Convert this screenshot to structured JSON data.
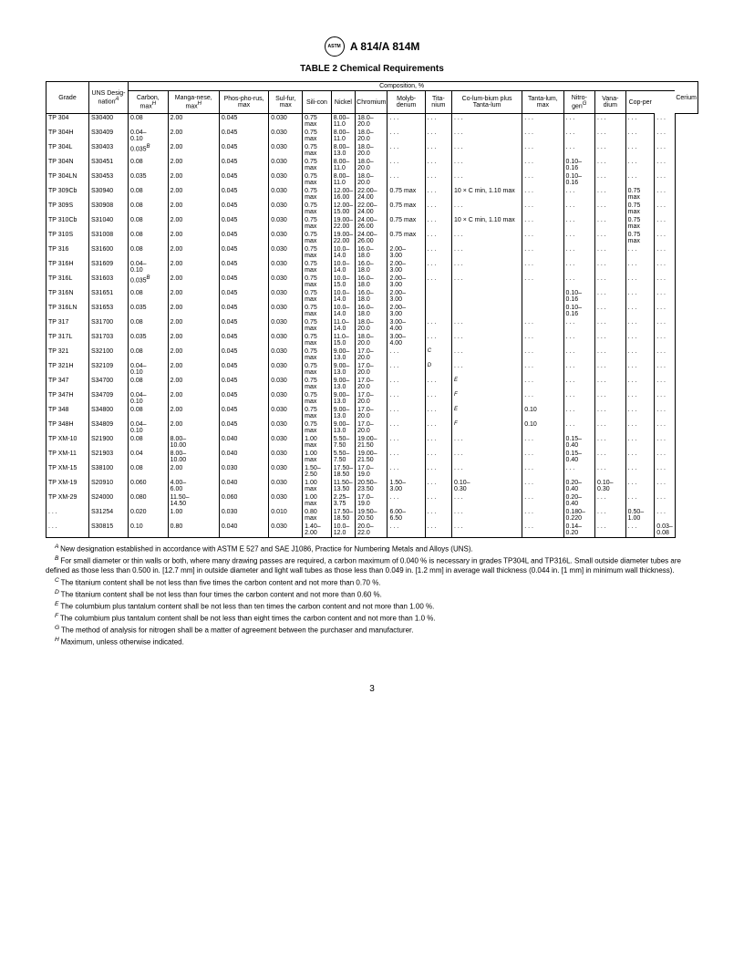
{
  "document": {
    "specification": "A 814/A 814M",
    "table_title": "TABLE 2  Chemical Requirements",
    "page_number": "3"
  },
  "headers": {
    "composition": "Composition, %",
    "grade": "Grade",
    "uns": "UNS Desig-nation",
    "carbon": "Carbon, max",
    "manganese": "Manga-nese, max",
    "phosphorus": "Phos-pho-rus, max",
    "sulfur": "Sul-fur, max",
    "silicon": "Sili-con",
    "nickel": "Nickel",
    "chromium": "Chromium",
    "molybdenum": "Molyb-denum",
    "titanium": "Tita-nium",
    "columbium": "Co-lum-bium plus Tanta-lum",
    "tantalum": "Tanta-lum, max",
    "nitrogen": "Nitro-gen",
    "vanadium": "Vana-dium",
    "copper": "Cop-per",
    "cerium": "Cerium"
  },
  "superscripts": {
    "uns": "A",
    "carbon": "H",
    "manganese": "H",
    "nitrogen": "G"
  },
  "rows": [
    {
      "grade": "TP 304",
      "uns": "S30400",
      "c": "0.08",
      "mn": "2.00",
      "p": "0.045",
      "s": "0.030",
      "si": "0.75 max",
      "ni": "8.00–\n11.0",
      "cr": "18.0–\n20.0",
      "mo": ". . .",
      "ti": ". . .",
      "cb": ". . .",
      "ta": ". . .",
      "n": ". . .",
      "v": ". . .",
      "cu": ". . .",
      "ce": ". . ."
    },
    {
      "grade": "TP 304H",
      "uns": "S30409",
      "c": "0.04–\n0.10",
      "mn": "2.00",
      "p": "0.045",
      "s": "0.030",
      "si": "0.75 max",
      "ni": "8.00–\n11.0",
      "cr": "18.0–\n20.0",
      "mo": ". . .",
      "ti": ". . .",
      "cb": ". . .",
      "ta": ". . .",
      "n": ". . .",
      "v": ". . .",
      "cu": ". . .",
      "ce": ". . ."
    },
    {
      "grade": "TP 304L",
      "uns": "S30403",
      "c": "0.035",
      "c_sup": "B",
      "mn": "2.00",
      "p": "0.045",
      "s": "0.030",
      "si": "0.75 max",
      "ni": "8.00–\n13.0",
      "cr": "18.0–\n20.0",
      "mo": ". . .",
      "ti": ". . .",
      "cb": ". . .",
      "ta": ". . .",
      "n": ". . .",
      "v": ". . .",
      "cu": ". . .",
      "ce": ". . ."
    },
    {
      "grade": "TP  304N",
      "uns": "S30451",
      "c": "0.08",
      "mn": "2.00",
      "p": "0.045",
      "s": "0.030",
      "si": "0.75 max",
      "ni": "8.00–\n11.0",
      "cr": "18.0–\n20.0",
      "mo": ". . .",
      "ti": ". . .",
      "cb": ". . .",
      "ta": ". . .",
      "n": "0.10–\n0.16",
      "v": ". . .",
      "cu": ". . .",
      "ce": ". . ."
    },
    {
      "grade": "TP 304LN",
      "uns": "S30453",
      "c": "0.035",
      "mn": "2.00",
      "p": "0.045",
      "s": "0.030",
      "si": "0.75 max",
      "ni": "8.00–\n11.0",
      "cr": "18.0–\n20.0",
      "mo": ". . .",
      "ti": ". . .",
      "cb": ". . .",
      "ta": ". . .",
      "n": "0.10–\n0.16",
      "v": ". . .",
      "cu": ". . .",
      "ce": ". . ."
    },
    {
      "grade": "TP 309Cb",
      "uns": "S30940",
      "c": "0.08",
      "mn": "2.00",
      "p": "0.045",
      "s": "0.030",
      "si": "0.75 max",
      "ni": "12.00–\n16.00",
      "cr": "22.00–\n24.00",
      "mo": "0.75 max",
      "ti": ". . .",
      "cb": "10 × C min, 1.10 max",
      "ta": ". . .",
      "n": ". . .",
      "v": ". . .",
      "cu": "0.75 max",
      "ce": ". . ."
    },
    {
      "grade": "TP 309S",
      "uns": "S30908",
      "c": "0.08",
      "mn": "2.00",
      "p": "0.045",
      "s": "0.030",
      "si": "0.75 max",
      "ni": "12.00–\n15.00",
      "cr": "22.00–\n24.00",
      "mo": "0.75 max",
      "ti": ". . .",
      "cb": ". . .",
      "ta": ". . .",
      "n": ". . .",
      "v": ". . .",
      "cu": "0.75 max",
      "ce": ". . ."
    },
    {
      "grade": "TP 310Cb",
      "uns": "S31040",
      "c": "0.08",
      "mn": "2.00",
      "p": "0.045",
      "s": "0.030",
      "si": "0.75 max",
      "ni": "19.00–\n22.00",
      "cr": "24.00–\n26.00",
      "mo": "0.75 max",
      "ti": ". . .",
      "cb": "10 × C min, 1.10 max",
      "ta": ". . .",
      "n": ". . .",
      "v": ". . .",
      "cu": "0.75 max",
      "ce": ". . ."
    },
    {
      "grade": "TP 310S",
      "uns": "S31008",
      "c": "0.08",
      "mn": "2.00",
      "p": "0.045",
      "s": "0.030",
      "si": "0.75 max",
      "ni": "19.00–\n22.00",
      "cr": "24.00–\n26.00",
      "mo": "0.75 max",
      "ti": ". . .",
      "cb": ". . .",
      "ta": ". . .",
      "n": ". . .",
      "v": ". . .",
      "cu": "0.75 max",
      "ce": ". . ."
    },
    {
      "grade": "TP 316",
      "uns": "S31600",
      "c": "0.08",
      "mn": "2.00",
      "p": "0.045",
      "s": "0.030",
      "si": "0.75 max",
      "ni": "10.0–\n14.0",
      "cr": "16.0–\n18.0",
      "mo": "2.00–\n3.00",
      "ti": ". . .",
      "cb": ". . .",
      "ta": ". . .",
      "n": ". . .",
      "v": ". . .",
      "cu": ". . .",
      "ce": ". . ."
    },
    {
      "grade": "TP 316H",
      "uns": "S31609",
      "c": "0.04–\n0.10",
      "mn": "2.00",
      "p": "0.045",
      "s": "0.030",
      "si": "0.75 max",
      "ni": "10.0–\n14.0",
      "cr": "16.0–\n18.0",
      "mo": "2.00–\n3.00",
      "ti": ". . .",
      "cb": ". . .",
      "ta": ". . .",
      "n": ". . .",
      "v": ". . .",
      "cu": ". . .",
      "ce": ". . ."
    },
    {
      "grade": "TP 316L",
      "uns": "S31603",
      "c": "0.035",
      "c_sup": "B",
      "mn": "2.00",
      "p": "0.045",
      "s": "0.030",
      "si": "0.75 max",
      "ni": "10.0–\n15.0",
      "cr": "16.0–\n18.0",
      "mo": "2.00–\n3.00",
      "ti": ". . .",
      "cb": ". . .",
      "ta": ". . .",
      "n": ". . .",
      "v": ". . .",
      "cu": ". . .",
      "ce": ". . ."
    },
    {
      "grade": "TP 316N",
      "uns": "S31651",
      "c": "0.08",
      "mn": "2.00",
      "p": "0.045",
      "s": "0.030",
      "si": "0.75 max",
      "ni": "10.0–\n14.0",
      "cr": "16.0–\n18.0",
      "mo": "2.00–\n3.00",
      "ti": "",
      "cb": "",
      "ta": "",
      "n": "0.10–\n0.16",
      "v": ". . .",
      "cu": ". . .",
      "ce": ". . ."
    },
    {
      "grade": "TP 316LN",
      "uns": "S31653",
      "c": "0.035",
      "mn": "2.00",
      "p": "0.045",
      "s": "0.030",
      "si": "0.75 max",
      "ni": "10.0–\n14.0",
      "cr": "16.0–\n18.0",
      "mo": "2.00–\n3.00",
      "ti": "",
      "cb": "",
      "ta": "",
      "n": "0.10–\n0.16",
      "v": ". . .",
      "cu": ". . .",
      "ce": ". . ."
    },
    {
      "grade": "TP 317",
      "uns": "S31700",
      "c": "0.08",
      "mn": "2.00",
      "p": "0.045",
      "s": "0.030",
      "si": "0.75 max",
      "ni": "11.0–\n14.0",
      "cr": "18.0–\n20.0",
      "mo": "3.00–\n4.00",
      "ti": ". . .",
      "cb": ". . .",
      "ta": ". . .",
      "n": ". . .",
      "v": ". . .",
      "cu": ". . .",
      "ce": ". . ."
    },
    {
      "grade": "TP 317L",
      "uns": "S31703",
      "c": "0.035",
      "mn": "2.00",
      "p": "0.045",
      "s": "0.030",
      "si": "0.75 max",
      "ni": "11.0–\n15.0",
      "cr": "18.0–\n20.0",
      "mo": "3.00–\n4.00",
      "ti": ". . .",
      "cb": ". . .",
      "ta": ". . .",
      "n": ". . .",
      "v": ". . .",
      "cu": ". . .",
      "ce": ". . ."
    },
    {
      "grade": "TP 321",
      "uns": "S32100",
      "c": "0.08",
      "mn": "2.00",
      "p": "0.045",
      "s": "0.030",
      "si": "0.75 max",
      "ni": "9.00–\n13.0",
      "cr": "17.0–\n20.0",
      "mo": ". . .",
      "ti": "",
      "ti_sup": "C",
      "cb": ". . .",
      "ta": ". . .",
      "n": ". . .",
      "v": ". . .",
      "cu": ". . .",
      "ce": ". . ."
    },
    {
      "grade": "TP  321H",
      "uns": "S32109",
      "c": "0.04–\n0.10",
      "mn": "2.00",
      "p": "0.045",
      "s": "0.030",
      "si": "0.75 max",
      "ni": "9.00–\n13.0",
      "cr": "17.0–\n20.0",
      "mo": ". . .",
      "ti": "",
      "ti_sup": "D",
      "cb": ". . .",
      "ta": ". . .",
      "n": ". . .",
      "v": ". . .",
      "cu": ". . .",
      "ce": ". . ."
    },
    {
      "grade": "TP 347",
      "uns": "S34700",
      "c": "0.08",
      "mn": "2.00",
      "p": "0.045",
      "s": "0.030",
      "si": "0.75 max",
      "ni": "9.00–\n13.0",
      "cr": "17.0–\n20.0",
      "mo": ". . .",
      "ti": ". . .",
      "cb": "",
      "cb_sup": "E",
      "ta": ". . .",
      "n": ". . .",
      "v": ". . .",
      "cu": ". . .",
      "ce": ". . ."
    },
    {
      "grade": "TP 347H",
      "uns": "S34709",
      "c": "0.04–\n0.10",
      "mn": "2.00",
      "p": "0.045",
      "s": "0.030",
      "si": "0.75 max",
      "ni": "9.00–\n13.0",
      "cr": "17.0–\n20.0",
      "mo": ". . .",
      "ti": ". . .",
      "cb": "",
      "cb_sup": "F",
      "ta": ". . .",
      "n": ". . .",
      "v": ". . .",
      "cu": ". . .",
      "ce": ". . ."
    },
    {
      "grade": "TP 348",
      "uns": "S34800",
      "c": "0.08",
      "mn": "2.00",
      "p": "0.045",
      "s": "0.030",
      "si": "0.75 max",
      "ni": "9.00–\n13.0",
      "cr": "17.0–\n20.0",
      "mo": ". . .",
      "ti": ". . .",
      "cb": "",
      "cb_sup": "E",
      "ta": "0.10",
      "n": ". . .",
      "v": ". . .",
      "cu": ". . .",
      "ce": ". . ."
    },
    {
      "grade": "TP 348H",
      "uns": "S34809",
      "c": "0.04–\n0.10",
      "mn": "2.00",
      "p": "0.045",
      "s": "0.030",
      "si": "0.75 max",
      "ni": "9.00–\n13.0",
      "cr": "17.0–\n20.0",
      "mo": ". . .",
      "ti": ". . .",
      "cb": "",
      "cb_sup": "F",
      "ta": "0.10",
      "n": ". . .",
      "v": ". . .",
      "cu": ". . .",
      "ce": ". . ."
    },
    {
      "grade": "TP XM-10",
      "uns": "S21900",
      "c": "0.08",
      "mn": "8.00–\n10.00",
      "p": "0.040",
      "s": "0.030",
      "si": "1.00 max",
      "ni": "5.50–\n7.50",
      "cr": "19.00–\n21.50",
      "mo": ". . .",
      "ti": ". . .",
      "cb": ". . .",
      "ta": ". . .",
      "n": "0.15–\n0.40",
      "v": ". . .",
      "cu": ". . .",
      "ce": ". . ."
    },
    {
      "grade": "TP XM-11",
      "uns": "S21903",
      "c": "0.04",
      "mn": "8.00–\n10.00",
      "p": "0.040",
      "s": "0.030",
      "si": "1.00 max",
      "ni": "5.50–\n7.50",
      "cr": "19.00–\n21.50",
      "mo": ". . .",
      "ti": ". . .",
      "cb": ". . .",
      "ta": ". . .",
      "n": "0.15–\n0.40",
      "v": ". . .",
      "cu": ". . .",
      "ce": ". . ."
    },
    {
      "grade": "TP XM-15",
      "uns": "S38100",
      "c": "0.08",
      "mn": "2.00",
      "p": "0.030",
      "s": "0.030",
      "si": "1.50–\n2.50",
      "ni": "17.50–\n18.50",
      "cr": "17.0–\n19.0",
      "mo": ". . .",
      "ti": ". . .",
      "cb": ". . .",
      "ta": ". . .",
      "n": ". . .",
      "v": ". . .",
      "cu": ". . .",
      "ce": ". . ."
    },
    {
      "grade": "TP XM-19",
      "uns": "S20910",
      "c": "0.060",
      "mn": "4.00–\n6.00",
      "p": "0.040",
      "s": "0.030",
      "si": "1.00 max",
      "ni": "11.50–\n13.50",
      "cr": "20.50–\n23.50",
      "mo": "1.50–\n3.00",
      "ti": ". . .",
      "cb": "0.10–\n0.30",
      "ta": ". . .",
      "n": "0.20–\n0.40",
      "v": "0.10–\n0.30",
      "cu": ". . .",
      "ce": ". . ."
    },
    {
      "grade": "TP XM-29",
      "uns": "S24000",
      "c": "0.080",
      "mn": "11.50–\n14.50",
      "p": "0.060",
      "s": "0.030",
      "si": "1.00 max",
      "ni": "2.25–\n3.75",
      "cr": "17.0–\n19.0",
      "mo": ". . .",
      "ti": ". . .",
      "cb": ". . .",
      "ta": ". . .",
      "n": "0.20–\n0.40",
      "v": ". . .",
      "cu": ". . .",
      "ce": ". . ."
    },
    {
      "grade": ". . .",
      "uns": "S31254",
      "c": "0.020",
      "mn": "1.00",
      "p": "0.030",
      "s": "0.010",
      "si": "0.80 max",
      "ni": "17.50–\n18.50",
      "cr": "19.50–\n20.50",
      "mo": "6.00–\n6.50",
      "ti": ". . .",
      "cb": ". . .",
      "ta": ". . .",
      "n": "0.180–\n0.220",
      "v": ". . .",
      "cu": "0.50–\n1.00",
      "ce": ". . ."
    },
    {
      "grade": ". . .",
      "uns": "S30815",
      "c": "0.10",
      "mn": "0.80",
      "p": "0.040",
      "s": "0.030",
      "si": "1.40–\n2.00",
      "ni": "10.0–\n12.0",
      "cr": "20.0–\n22.0",
      "mo": ". . .",
      "ti": ". . .",
      "cb": ". . .",
      "ta": ". . .",
      "n": "0.14–\n0.20",
      "v": ". . .",
      "cu": ". . .",
      "ce": "0.03–\n0.08"
    }
  ],
  "footnotes": [
    {
      "letter": "A",
      "text": "New designation established in accordance with ASTM E 527 and SAE J1086, Practice for Numbering Metals and Alloys (UNS)."
    },
    {
      "letter": "B",
      "text": "For small diameter or thin walls or both, where many drawing passes are required, a carbon maximum of 0.040 % is necessary in grades TP304L and TP316L. Small outside diameter tubes are defined as those less than 0.500 in. [12.7 mm] in outside diameter and light wall tubes as those less than 0.049 in. [1.2 mm] in average wall thickness (0.044 in. [1 mm] in minimum wall thickness)."
    },
    {
      "letter": "C",
      "text": "The titanium content shall be not less than five times the carbon content and not more than 0.70 %."
    },
    {
      "letter": "D",
      "text": "The titanium content shall be not less than four times the carbon content and not more than 0.60 %."
    },
    {
      "letter": "E",
      "text": "The columbium plus tantalum content shall be not less than ten times the carbon content and not more than 1.00 %."
    },
    {
      "letter": "F",
      "text": "The columbium plus tantalum content shall be not less than eight times the carbon content and not more than 1.0 %."
    },
    {
      "letter": "G",
      "text": "The method of analysis for nitrogen shall be a matter of agreement between the purchaser and manufacturer."
    },
    {
      "letter": "H",
      "text": "Maximum, unless otherwise indicated."
    }
  ]
}
